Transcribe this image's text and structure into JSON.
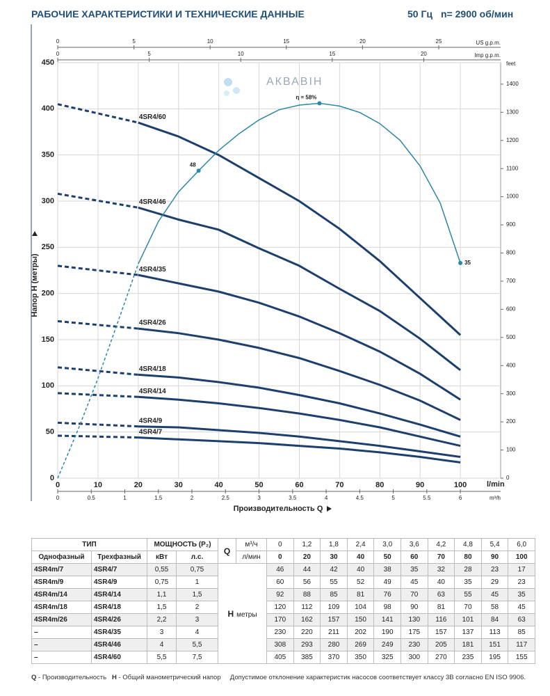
{
  "header": {
    "title": "РАБОЧИЕ ХАРАКТЕРИСТИКИ И ТЕХНИЧЕСКИЕ ДАННЫЕ",
    "freq": "50 Гц",
    "speed": "n= 2900 об/мин"
  },
  "chart_data": {
    "type": "line",
    "watermark": "АКВАВІН",
    "y_label": "Напор H (метры)",
    "x_label": "Производительность Q",
    "x_unit": "l/min",
    "xlim": [
      0,
      110
    ],
    "xticks": [
      0,
      10,
      20,
      30,
      40,
      50,
      60,
      70,
      80,
      90,
      100
    ],
    "ylim": [
      0,
      450
    ],
    "yticks": [
      0,
      50,
      100,
      150,
      200,
      250,
      300,
      350,
      400,
      450
    ],
    "y2_label": "feet",
    "y2lim": [
      0,
      1476.4
    ],
    "y2ticks": [
      0,
      100,
      200,
      300,
      400,
      500,
      600,
      700,
      800,
      900,
      1000,
      1100,
      1200,
      1300,
      1400
    ],
    "us_gpm": {
      "label": "US g.p.m.",
      "xlim": [
        0,
        29.06
      ],
      "xticks": [
        0,
        5,
        10,
        15,
        20,
        25
      ]
    },
    "imp_gpm": {
      "label": "Imp g.p.m.",
      "xlim": [
        0,
        24.2
      ],
      "xticks": [
        0,
        5,
        10,
        15,
        20
      ]
    },
    "m3h": {
      "label": "m³/h",
      "xlim": [
        0,
        6.6
      ],
      "xticks": [
        0,
        0.5,
        1,
        1.5,
        2,
        2.5,
        3,
        3.5,
        4,
        4.5,
        5,
        5.5,
        6
      ]
    },
    "grid": true,
    "x": [
      0,
      20,
      30,
      40,
      50,
      60,
      70,
      80,
      90,
      100
    ],
    "series": [
      {
        "name": "4SR4/7",
        "color": "#1d3f6e",
        "values": [
          46,
          44,
          42,
          40,
          38,
          35,
          32,
          28,
          23,
          17
        ]
      },
      {
        "name": "4SR4/9",
        "color": "#1d3f6e",
        "values": [
          60,
          56,
          55,
          52,
          49,
          45,
          40,
          35,
          29,
          23
        ]
      },
      {
        "name": "4SR4/14",
        "color": "#1d3f6e",
        "values": [
          92,
          88,
          85,
          81,
          76,
          70,
          63,
          55,
          45,
          35
        ]
      },
      {
        "name": "4SR4/18",
        "color": "#1d3f6e",
        "values": [
          120,
          112,
          109,
          104,
          98,
          90,
          81,
          70,
          58,
          45
        ]
      },
      {
        "name": "4SR4/26",
        "color": "#1d3f6e",
        "values": [
          170,
          162,
          157,
          150,
          141,
          130,
          116,
          101,
          84,
          63
        ]
      },
      {
        "name": "4SR4/35",
        "color": "#1d3f6e",
        "values": [
          230,
          220,
          211,
          202,
          190,
          175,
          157,
          137,
          113,
          85
        ]
      },
      {
        "name": "4SR4/46",
        "color": "#1d3f6e",
        "values": [
          308,
          293,
          280,
          269,
          249,
          230,
          205,
          181,
          151,
          117
        ]
      },
      {
        "name": "4SR4/60",
        "color": "#1d3f6e",
        "values": [
          405,
          385,
          370,
          350,
          325,
          300,
          270,
          235,
          195,
          155
        ]
      }
    ],
    "efficiency": {
      "color": "#2b87a8",
      "x": [
        0,
        5,
        10,
        15,
        20,
        25,
        30,
        35,
        40,
        45,
        50,
        55,
        60,
        65,
        70,
        75,
        80,
        85,
        90,
        95,
        100
      ],
      "values": [
        0,
        52,
        108,
        170,
        232,
        278,
        310,
        333,
        355,
        373,
        388,
        399,
        404,
        406,
        403,
        396,
        384,
        366,
        338,
        298,
        233
      ],
      "points": [
        {
          "x": 35,
          "y": 333,
          "label": "48"
        },
        {
          "x": 65,
          "y": 406,
          "label": "η = 58%"
        },
        {
          "x": 100,
          "y": 233,
          "label": "35"
        }
      ]
    }
  },
  "table": {
    "head": {
      "type": "ТИП",
      "power": "МОЩНОСТЬ (P₂)",
      "q": "Q",
      "q_unit_m3h": "м³/ч",
      "q_unit_lmin": "л/мин",
      "single": "Однофазный",
      "three": "Трехфазный",
      "kw": "кВт",
      "hp": "л.с.",
      "h": "H",
      "h_unit": "метры"
    },
    "q_m3h": [
      "0",
      "1,2",
      "1,8",
      "2,4",
      "3,0",
      "3,6",
      "4,2",
      "4,8",
      "5,4",
      "6,0"
    ],
    "rows": [
      {
        "single": "4SR4m/7",
        "kw": "0,55",
        "hp": "0,75"
      },
      {
        "single": "4SR4m/9",
        "kw": "0,75",
        "hp": "1"
      },
      {
        "single": "4SR4m/14",
        "kw": "1,1",
        "hp": "1,5"
      },
      {
        "single": "4SR4m/18",
        "kw": "1,5",
        "hp": "2"
      },
      {
        "single": "4SR4m/26",
        "kw": "2,2",
        "hp": "3"
      },
      {
        "single": "–",
        "kw": "3",
        "hp": "4"
      },
      {
        "single": "–",
        "kw": "4",
        "hp": "5,5"
      },
      {
        "single": "–",
        "kw": "5,5",
        "hp": "7,5"
      }
    ]
  },
  "footer": {
    "q": "Q",
    "q_text": "- Производительность",
    "h": "H",
    "h_text": "- Общий манометрический напор",
    "note": "Допустимое отклонение характеристик насосов соответствует классу 3B согласно EN ISO 9906."
  }
}
